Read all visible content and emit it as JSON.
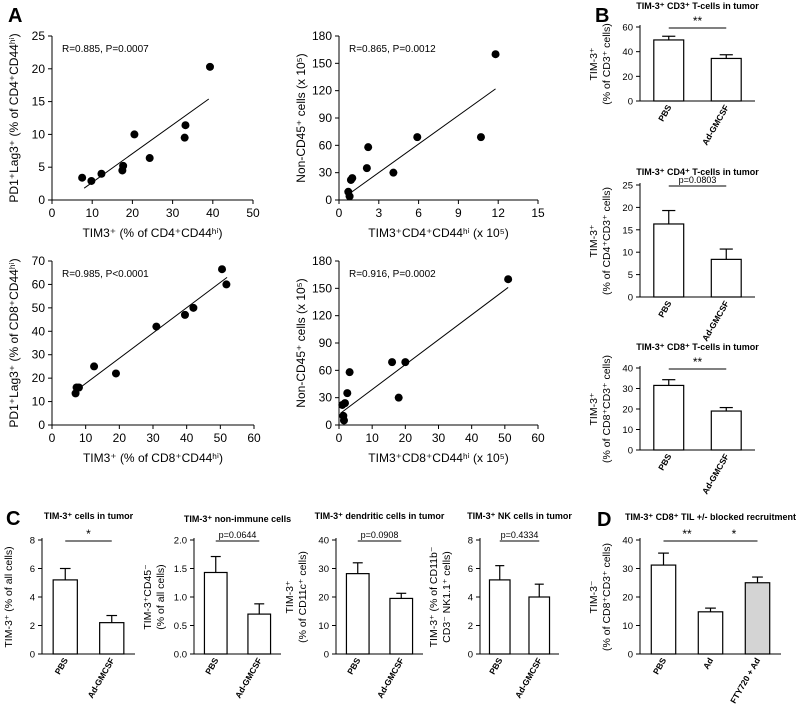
{
  "panel_labels": {
    "A": "A",
    "B": "B",
    "C": "C",
    "D": "D"
  },
  "chart_data": [
    {
      "id": "a1",
      "type": "scatter",
      "title": "",
      "xlabel": "TIM3⁺ (% of CD4⁺CD44ʰⁱ)",
      "ylabel": "PD1⁺Lag3⁺ (% of CD4⁺CD44ʰⁱ)",
      "xlim": [
        0,
        50
      ],
      "ylim": [
        0,
        25
      ],
      "xticks": [
        0,
        10,
        20,
        30,
        40,
        50
      ],
      "yticks": [
        0,
        5,
        10,
        15,
        20,
        25
      ],
      "annotation": "R=0.885, P=0.0007",
      "x": [
        7.5,
        9.8,
        12.3,
        17.5,
        17.7,
        20.5,
        24.3,
        33.0,
        33.2,
        39.3
      ],
      "y": [
        3.4,
        2.9,
        4.0,
        4.5,
        5.2,
        10.0,
        6.4,
        9.5,
        11.4,
        20.3
      ],
      "fit": [
        [
          8,
          1.8
        ],
        [
          39,
          15.4
        ]
      ]
    },
    {
      "id": "a2",
      "type": "scatter",
      "title": "",
      "xlabel": "TIM3⁺CD4⁺CD44ʰⁱ (x 10⁵)",
      "ylabel": "Non-CD45⁺ cells (x 10⁵)",
      "xlim": [
        0,
        15
      ],
      "ylim": [
        0,
        180
      ],
      "xticks": [
        0,
        3,
        6,
        9,
        12,
        15
      ],
      "yticks": [
        0,
        30,
        60,
        90,
        120,
        150,
        180
      ],
      "annotation": "R=0.865, P=0.0012",
      "x": [
        0.7,
        0.8,
        0.9,
        1.0,
        2.1,
        2.2,
        4.1,
        5.9,
        10.7,
        11.8
      ],
      "y": [
        9,
        4,
        22,
        24,
        35,
        58,
        30,
        69,
        69,
        160
      ],
      "fit": [
        [
          0.5,
          4
        ],
        [
          11.8,
          122
        ]
      ]
    },
    {
      "id": "a3",
      "type": "scatter",
      "title": "",
      "xlabel": "TIM3⁺ (% of CD8⁺CD44ʰⁱ)",
      "ylabel": "PD1⁺Lag3⁺ (% of CD8⁺CD44ʰⁱ)",
      "xlim": [
        0,
        60
      ],
      "ylim": [
        0,
        70
      ],
      "xticks": [
        0,
        10,
        20,
        30,
        40,
        50,
        60
      ],
      "yticks": [
        0,
        10,
        20,
        30,
        40,
        50,
        60,
        70
      ],
      "annotation": "R=0.985, P<0.0001",
      "x": [
        7.0,
        7.3,
        8.0,
        12.5,
        19.0,
        31.0,
        39.5,
        42.0,
        50.5,
        51.8
      ],
      "y": [
        13.5,
        16.0,
        16.0,
        25.0,
        22.0,
        42.0,
        47.0,
        50.0,
        66.5,
        60.0
      ],
      "fit": [
        [
          7,
          14.5
        ],
        [
          52,
          63
        ]
      ]
    },
    {
      "id": "a4",
      "type": "scatter",
      "title": "",
      "xlabel": "TIM3⁺CD8⁺CD44ʰⁱ (x 10⁵)",
      "ylabel": "Non-CD45⁺ cells (x 10⁵)",
      "xlim": [
        0,
        60
      ],
      "ylim": [
        0,
        180
      ],
      "xticks": [
        0,
        10,
        20,
        30,
        40,
        50,
        60
      ],
      "yticks": [
        0,
        30,
        60,
        90,
        120,
        150,
        180
      ],
      "annotation": "R=0.916, P=0.0002",
      "x": [
        1.0,
        1.3,
        1.5,
        1.8,
        2.5,
        3.2,
        16.0,
        18.0,
        20.0,
        51.0
      ],
      "y": [
        22,
        10,
        5,
        24,
        35,
        58,
        69,
        30,
        69,
        160
      ],
      "fit": [
        [
          0.5,
          13
        ],
        [
          51,
          151
        ]
      ]
    },
    {
      "id": "b1",
      "type": "bar",
      "title": "TIM-3⁺ CD3⁺ T-cells in tumor",
      "ylabel_lines": [
        "TIM-3⁺",
        "(% of CD3⁺ cells)"
      ],
      "ylim": [
        0,
        60
      ],
      "yticks": [
        0,
        20,
        40,
        60
      ],
      "categories": [
        "PBS",
        "Ad-GMCSF"
      ],
      "values": [
        49.5,
        34.5
      ],
      "errors": [
        3.0,
        3.0
      ],
      "fills": [
        "#ffffff",
        "#ffffff"
      ],
      "sig": [
        {
          "from": 0,
          "to": 1,
          "label": "**"
        }
      ]
    },
    {
      "id": "b2",
      "type": "bar",
      "title": "TIM-3⁺ CD4⁺ T-cells in tumor",
      "ylabel_lines": [
        "TIM-3⁺",
        "(% of CD4⁺CD3⁺ cells)"
      ],
      "ylim": [
        0,
        25
      ],
      "yticks": [
        0,
        5,
        10,
        15,
        20,
        25
      ],
      "categories": [
        "PBS",
        "Ad-GMCSF"
      ],
      "values": [
        16.3,
        8.4
      ],
      "errors": [
        3.0,
        2.3
      ],
      "fills": [
        "#ffffff",
        "#ffffff"
      ],
      "sig": [
        {
          "from": 0,
          "to": 1,
          "label": "p=0.0803"
        }
      ]
    },
    {
      "id": "b3",
      "type": "bar",
      "title": "TIM-3⁺ CD8⁺ T-cells in tumor",
      "ylabel_lines": [
        "TIM-3⁺",
        "(% of CD8⁺CD3⁺ cells)"
      ],
      "ylim": [
        0,
        40
      ],
      "yticks": [
        0,
        10,
        20,
        30,
        40
      ],
      "categories": [
        "PBS",
        "Ad-GMCSF"
      ],
      "values": [
        31.5,
        19.0
      ],
      "errors": [
        2.8,
        1.7
      ],
      "fills": [
        "#ffffff",
        "#ffffff"
      ],
      "sig": [
        {
          "from": 0,
          "to": 1,
          "label": "**"
        }
      ]
    },
    {
      "id": "c1",
      "type": "bar",
      "title": "TIM-3⁺ cells in tumor",
      "ylabel_lines": [
        "TIM-3⁺ (% of all cells)"
      ],
      "ylim": [
        0,
        8
      ],
      "yticks": [
        0,
        2,
        4,
        6,
        8
      ],
      "categories": [
        "PBS",
        "Ad-GMCSF"
      ],
      "values": [
        5.2,
        2.2
      ],
      "errors": [
        0.8,
        0.5
      ],
      "fills": [
        "#ffffff",
        "#ffffff"
      ],
      "sig": [
        {
          "from": 0,
          "to": 1,
          "label": "*"
        }
      ]
    },
    {
      "id": "c2",
      "type": "bar",
      "title": "TIM-3⁺ non-immune cells",
      "ylabel_lines": [
        "TIM-3⁺CD45⁻",
        "(% of all cells)"
      ],
      "ylim": [
        0,
        2.0
      ],
      "yticks": [
        0,
        0.5,
        1.0,
        1.5,
        2.0
      ],
      "categories": [
        "PBS",
        "Ad-GMCSF"
      ],
      "values": [
        1.43,
        0.7
      ],
      "errors": [
        0.28,
        0.18
      ],
      "fills": [
        "#ffffff",
        "#ffffff"
      ],
      "sig": [
        {
          "from": 0,
          "to": 1,
          "label": "p=0.0644"
        }
      ]
    },
    {
      "id": "c3",
      "type": "bar",
      "title": "TIM-3⁺ dendritic cells in tumor",
      "ylabel_lines": [
        "TIM-3⁺",
        "(% of CD11c⁺ cells)"
      ],
      "ylim": [
        0,
        40
      ],
      "yticks": [
        0,
        10,
        20,
        30,
        40
      ],
      "categories": [
        "PBS",
        "Ad-GMCSF"
      ],
      "values": [
        28.2,
        19.5
      ],
      "errors": [
        3.8,
        1.8
      ],
      "fills": [
        "#ffffff",
        "#ffffff"
      ],
      "sig": [
        {
          "from": 0,
          "to": 1,
          "label": "p=0.0908"
        }
      ]
    },
    {
      "id": "c4",
      "type": "bar",
      "title": "TIM-3⁺ NK cells in tumor",
      "ylabel_lines": [
        "TIM-3⁺ (% of CD11b⁻",
        "CD3⁻ NK1.1⁺ cells)"
      ],
      "ylim": [
        0,
        8
      ],
      "yticks": [
        0,
        2,
        4,
        6,
        8
      ],
      "categories": [
        "PBS",
        "Ad-GMCSF"
      ],
      "values": [
        5.2,
        4.0
      ],
      "errors": [
        1.0,
        0.9
      ],
      "fills": [
        "#ffffff",
        "#ffffff"
      ],
      "sig": [
        {
          "from": 0,
          "to": 1,
          "label": "p=0.4334"
        }
      ]
    },
    {
      "id": "d1",
      "type": "bar",
      "title": "TIM-3⁺ CD8⁺ TIL +/- blocked recruitment",
      "ylabel_lines": [
        "TIM-3⁻",
        "(% of CD8⁺CD3⁺ cells)"
      ],
      "ylim": [
        0,
        40
      ],
      "yticks": [
        0,
        10,
        20,
        30,
        40
      ],
      "categories": [
        "PBS",
        "Ad",
        "FTY720 + Ad"
      ],
      "values": [
        31.2,
        14.8,
        25.0
      ],
      "errors": [
        4.2,
        1.3,
        2.0
      ],
      "fills": [
        "#ffffff",
        "#ffffff",
        "#d4d4d4"
      ],
      "sig": [
        {
          "from": 0,
          "to": 1,
          "label": "**"
        },
        {
          "from": 1,
          "to": 2,
          "label": "*"
        }
      ]
    }
  ]
}
